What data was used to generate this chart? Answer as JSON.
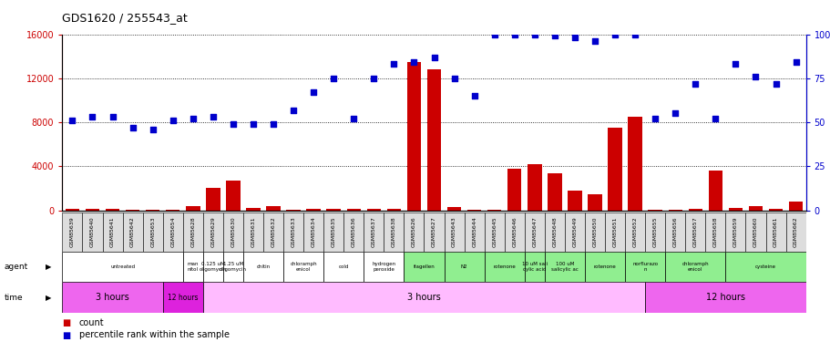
{
  "title": "GDS1620 / 255543_at",
  "samples": [
    "GSM85639",
    "GSM85640",
    "GSM85641",
    "GSM85642",
    "GSM85653",
    "GSM85654",
    "GSM85628",
    "GSM85629",
    "GSM85630",
    "GSM85631",
    "GSM85632",
    "GSM85633",
    "GSM85634",
    "GSM85635",
    "GSM85636",
    "GSM85637",
    "GSM85638",
    "GSM85626",
    "GSM85627",
    "GSM85643",
    "GSM85644",
    "GSM85645",
    "GSM85646",
    "GSM85647",
    "GSM85648",
    "GSM85649",
    "GSM85650",
    "GSM85651",
    "GSM85652",
    "GSM85655",
    "GSM85656",
    "GSM85657",
    "GSM85658",
    "GSM85659",
    "GSM85660",
    "GSM85661",
    "GSM85662"
  ],
  "counts": [
    100,
    130,
    110,
    80,
    60,
    50,
    350,
    2000,
    2700,
    200,
    350,
    90,
    130,
    160,
    100,
    100,
    120,
    13500,
    12800,
    300,
    90,
    70,
    3800,
    4200,
    3400,
    1800,
    1500,
    7500,
    8500,
    70,
    50,
    100,
    3600,
    200,
    420,
    100,
    800
  ],
  "percentiles": [
    51,
    53,
    53,
    47,
    46,
    51,
    52,
    53,
    49,
    49,
    49,
    57,
    67,
    75,
    52,
    75,
    83,
    84,
    87,
    75,
    65,
    100,
    100,
    100,
    99,
    98,
    96,
    100,
    100,
    52,
    55,
    72,
    52,
    83,
    76,
    72,
    84
  ],
  "agent_groups": [
    {
      "label": "untreated",
      "start": 0,
      "end": 6,
      "color": "#ffffff"
    },
    {
      "label": "man\nnitol",
      "start": 6,
      "end": 7,
      "color": "#ffffff"
    },
    {
      "label": "0.125 uM\noligomycin",
      "start": 7,
      "end": 8,
      "color": "#ffffff"
    },
    {
      "label": "1.25 uM\noligomycin",
      "start": 8,
      "end": 9,
      "color": "#ffffff"
    },
    {
      "label": "chitin",
      "start": 9,
      "end": 11,
      "color": "#ffffff"
    },
    {
      "label": "chloramph\nenicol",
      "start": 11,
      "end": 13,
      "color": "#ffffff"
    },
    {
      "label": "cold",
      "start": 13,
      "end": 15,
      "color": "#ffffff"
    },
    {
      "label": "hydrogen\nperoxide",
      "start": 15,
      "end": 17,
      "color": "#ffffff"
    },
    {
      "label": "flagellen",
      "start": 17,
      "end": 19,
      "color": "#90ee90"
    },
    {
      "label": "N2",
      "start": 19,
      "end": 21,
      "color": "#90ee90"
    },
    {
      "label": "rotenone",
      "start": 21,
      "end": 23,
      "color": "#90ee90"
    },
    {
      "label": "10 uM sali\ncylic acid",
      "start": 23,
      "end": 24,
      "color": "#90ee90"
    },
    {
      "label": "100 uM\nsalicylic ac",
      "start": 24,
      "end": 26,
      "color": "#90ee90"
    },
    {
      "label": "rotenone",
      "start": 26,
      "end": 28,
      "color": "#90ee90"
    },
    {
      "label": "norflurazo\nn",
      "start": 28,
      "end": 30,
      "color": "#90ee90"
    },
    {
      "label": "chloramph\nenicol",
      "start": 30,
      "end": 33,
      "color": "#90ee90"
    },
    {
      "label": "cysteine",
      "start": 33,
      "end": 37,
      "color": "#90ee90"
    }
  ],
  "time_groups": [
    {
      "label": "3 hours",
      "start": 0,
      "end": 5,
      "color": "#ee66ee"
    },
    {
      "label": "12 hours",
      "start": 5,
      "end": 7,
      "color": "#dd22dd"
    },
    {
      "label": "3 hours",
      "start": 7,
      "end": 29,
      "color": "#ffbbff"
    },
    {
      "label": "12 hours",
      "start": 29,
      "end": 37,
      "color": "#ee66ee"
    }
  ],
  "ylim_left": [
    0,
    16000
  ],
  "ylim_right": [
    0,
    100
  ],
  "yticks_left": [
    0,
    4000,
    8000,
    12000,
    16000
  ],
  "yticks_right": [
    0,
    25,
    50,
    75,
    100
  ],
  "bar_color": "#cc0000",
  "scatter_color": "#0000cc",
  "background_color": "#ffffff"
}
